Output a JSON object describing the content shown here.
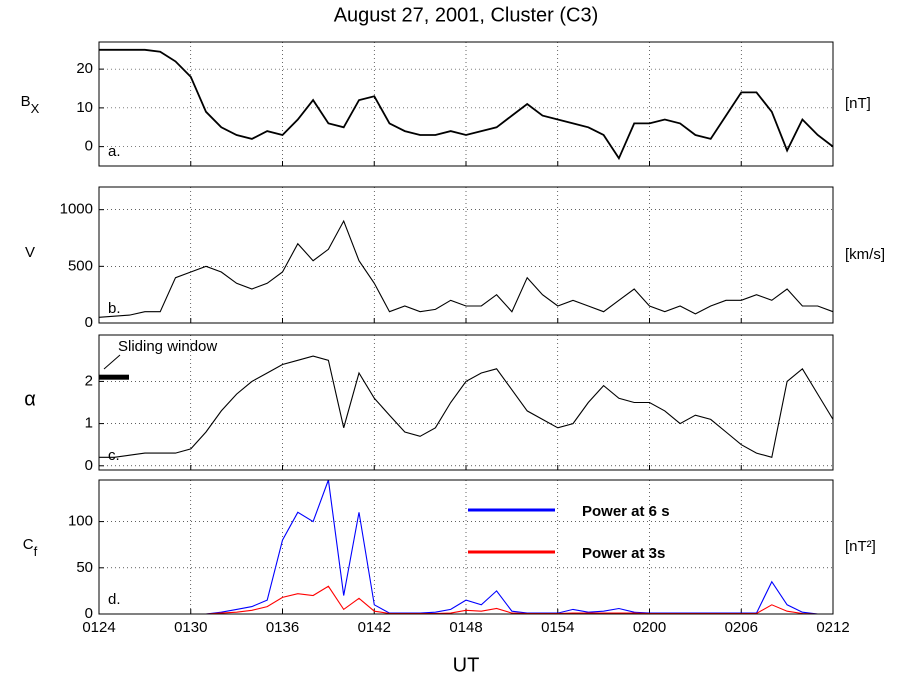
{
  "chart_data": [
    {
      "type": "line",
      "title": "August 27, 2001, Cluster (C3)",
      "ylabel": "B",
      "ylabel_subscript": "X",
      "unit_label": "[nT]",
      "panel_label": "a.",
      "xlim": [
        84,
        132
      ],
      "ylim": [
        -5,
        27
      ],
      "yticks": [
        0,
        10,
        20
      ],
      "grid": true,
      "x": [
        84,
        85,
        86,
        87,
        88,
        89,
        90,
        91,
        92,
        93,
        94,
        95,
        96,
        97,
        98,
        99,
        100,
        101,
        102,
        103,
        104,
        105,
        106,
        107,
        108,
        109,
        110,
        111,
        112,
        113,
        114,
        115,
        116,
        117,
        118,
        119,
        120,
        121,
        122,
        123,
        124,
        125,
        126,
        127,
        128,
        129,
        130,
        131,
        132
      ],
      "series": [
        {
          "color": "#000000",
          "values": [
            25,
            25,
            25,
            25,
            24.5,
            22,
            18,
            9,
            5,
            3,
            2,
            4,
            3,
            7,
            12,
            6,
            5,
            12,
            13,
            6,
            4,
            3,
            3,
            4,
            3,
            4,
            5,
            8,
            11,
            8,
            7,
            6,
            5,
            3,
            -3,
            6,
            6,
            7,
            6,
            3,
            2,
            8,
            14,
            14,
            9,
            -1,
            7,
            3,
            0
          ]
        }
      ]
    },
    {
      "type": "line",
      "ylabel": "V",
      "unit_label": "[km/s]",
      "panel_label": "b.",
      "xlim": [
        84,
        132
      ],
      "ylim": [
        0,
        1200
      ],
      "yticks": [
        0,
        500,
        1000
      ],
      "grid": true,
      "x": [
        84,
        85,
        86,
        87,
        88,
        89,
        90,
        91,
        92,
        93,
        94,
        95,
        96,
        97,
        98,
        99,
        100,
        101,
        102,
        103,
        104,
        105,
        106,
        107,
        108,
        109,
        110,
        111,
        112,
        113,
        114,
        115,
        116,
        117,
        118,
        119,
        120,
        121,
        122,
        123,
        124,
        125,
        126,
        127,
        128,
        129,
        130,
        131,
        132
      ],
      "series": [
        {
          "color": "#000000",
          "values": [
            50,
            60,
            70,
            100,
            100,
            400,
            450,
            500,
            450,
            350,
            300,
            350,
            450,
            700,
            550,
            650,
            900,
            550,
            350,
            100,
            150,
            100,
            120,
            200,
            150,
            150,
            250,
            100,
            400,
            250,
            150,
            200,
            150,
            100,
            200,
            300,
            150,
            100,
            150,
            80,
            150,
            200,
            200,
            250,
            200,
            300,
            150,
            150,
            100
          ]
        }
      ]
    },
    {
      "type": "line",
      "ylabel": "α",
      "panel_label": "c.",
      "annotation": "Sliding window",
      "xlim": [
        84,
        132
      ],
      "ylim": [
        -0.1,
        3.1
      ],
      "yticks": [
        0,
        1,
        2
      ],
      "grid": true,
      "x": [
        84,
        85,
        86,
        87,
        88,
        89,
        90,
        91,
        92,
        93,
        94,
        95,
        96,
        97,
        98,
        99,
        100,
        101,
        102,
        103,
        104,
        105,
        106,
        107,
        108,
        109,
        110,
        111,
        112,
        113,
        114,
        115,
        116,
        117,
        118,
        119,
        120,
        121,
        122,
        123,
        124,
        125,
        126,
        127,
        128,
        129,
        130,
        131,
        132
      ],
      "series": [
        {
          "color": "#000000",
          "values": [
            0.2,
            0.2,
            0.25,
            0.3,
            0.3,
            0.3,
            0.4,
            0.8,
            1.3,
            1.7,
            2,
            2.2,
            2.4,
            2.5,
            2.6,
            2.5,
            0.9,
            2.2,
            1.6,
            1.2,
            0.8,
            0.7,
            0.9,
            1.5,
            2,
            2.2,
            2.3,
            1.8,
            1.3,
            1.1,
            0.9,
            1,
            1.5,
            1.9,
            1.6,
            1.5,
            1.5,
            1.3,
            1,
            1.2,
            1.1,
            0.8,
            0.5,
            0.3,
            0.2,
            2,
            2.3,
            1.7,
            1.1
          ]
        }
      ]
    },
    {
      "type": "line",
      "ylabel": "C",
      "ylabel_subscript": "f",
      "unit_label": "[nT²]",
      "panel_label": "d.",
      "xlabel": "UT",
      "xlim": [
        84,
        132
      ],
      "ylim": [
        0,
        145
      ],
      "yticks": [
        0,
        50,
        100
      ],
      "grid": true,
      "xticks": [
        {
          "value": 84,
          "label": "0124"
        },
        {
          "value": 90,
          "label": "0130"
        },
        {
          "value": 96,
          "label": "0136"
        },
        {
          "value": 102,
          "label": "0142"
        },
        {
          "value": 108,
          "label": "0148"
        },
        {
          "value": 114,
          "label": "0154"
        },
        {
          "value": 120,
          "label": "0200"
        },
        {
          "value": 126,
          "label": "0206"
        },
        {
          "value": 132,
          "label": "0212"
        }
      ],
      "x": [
        84,
        85,
        86,
        87,
        88,
        89,
        90,
        91,
        92,
        93,
        94,
        95,
        96,
        97,
        98,
        99,
        100,
        101,
        102,
        103,
        104,
        105,
        106,
        107,
        108,
        109,
        110,
        111,
        112,
        113,
        114,
        115,
        116,
        117,
        118,
        119,
        120,
        121,
        122,
        123,
        124,
        125,
        126,
        127,
        128,
        129,
        130,
        131,
        132
      ],
      "series": [
        {
          "name": "Power at 6 s",
          "color": "#0000ff",
          "values": [
            0,
            0,
            0,
            0,
            0,
            0,
            0,
            0,
            2,
            5,
            8,
            15,
            80,
            110,
            100,
            145,
            20,
            110,
            10,
            1,
            1,
            1,
            2,
            5,
            15,
            10,
            25,
            3,
            1,
            1,
            1,
            5,
            2,
            3,
            6,
            2,
            1,
            1,
            1,
            1,
            1,
            1,
            1,
            1,
            35,
            10,
            2,
            0,
            0
          ]
        },
        {
          "name": "Power at 3s",
          "color": "#ff0000",
          "values": [
            0,
            0,
            0,
            0,
            0,
            0,
            0,
            0,
            1,
            2,
            4,
            8,
            18,
            22,
            20,
            30,
            5,
            17,
            3,
            0.5,
            0.5,
            0.5,
            0.5,
            1,
            4,
            3,
            6,
            1,
            0.5,
            0.5,
            0.5,
            1,
            1,
            1,
            1,
            1,
            0.5,
            0.5,
            0.5,
            0.5,
            0.5,
            0.5,
            0.5,
            0.5,
            10,
            3,
            0.5,
            0,
            0
          ]
        }
      ]
    }
  ]
}
